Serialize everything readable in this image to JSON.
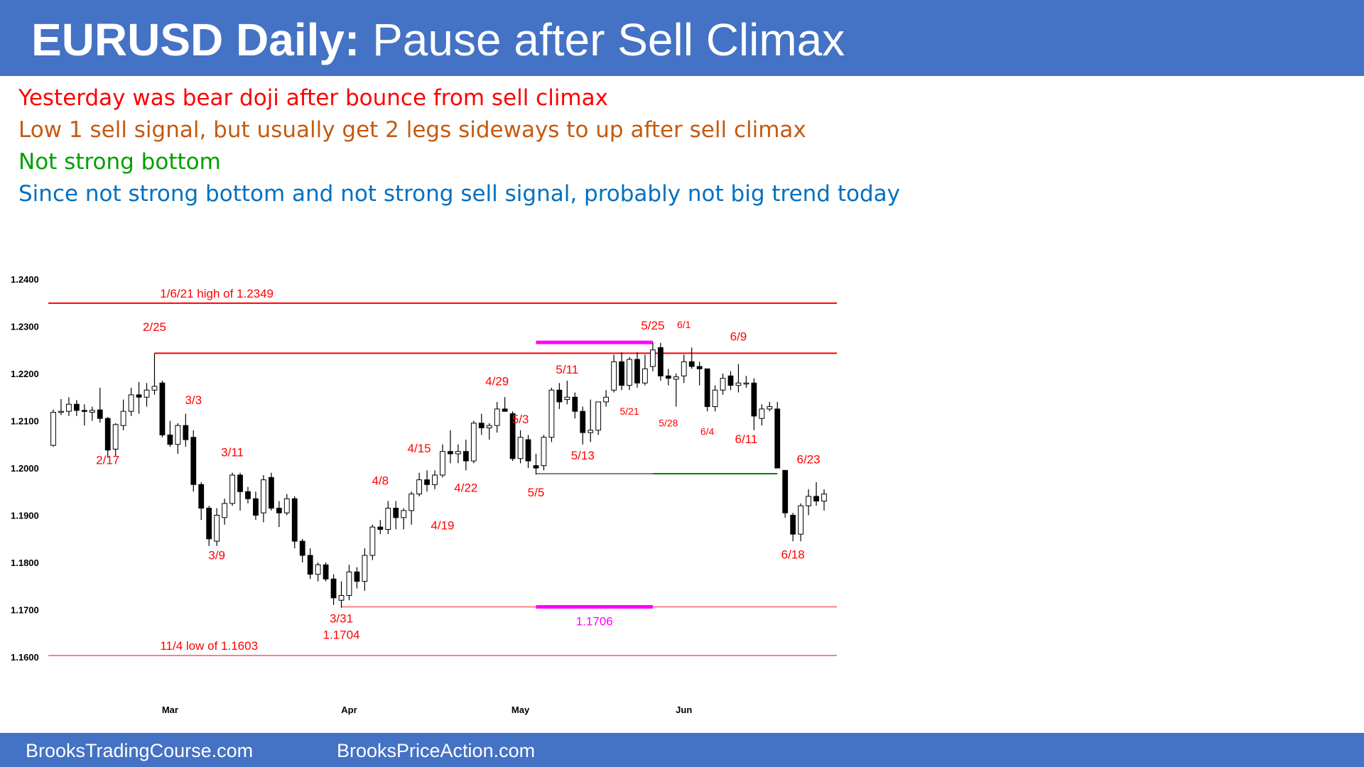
{
  "header": {
    "title_bold": "EURUSD Daily:",
    "title_rest": " Pause after Sell Climax",
    "bar_color": "#4472c4"
  },
  "notes": [
    {
      "text": "Yesterday was bear doji after bounce from sell climax",
      "color": "#ff0000"
    },
    {
      "text": "Low 1 sell signal, but usually get 2 legs sideways to up after sell climax",
      "color": "#c55a11"
    },
    {
      "text": "Not strong bottom",
      "color": "#00a000"
    },
    {
      "text": "Since not strong bottom and not strong sell signal, probably not big trend today",
      "color": "#0070c0"
    }
  ],
  "footer": {
    "left": "BrooksTradingCourse.com",
    "right": "BrooksPriceAction.com"
  },
  "chart_data": {
    "type": "candlestick",
    "title": "",
    "ylim": [
      1.16,
      1.24
    ],
    "y_ticks": [
      "1.2400",
      "1.2300",
      "1.2200",
      "1.2100",
      "1.2000",
      "1.1900",
      "1.1800",
      "1.1700",
      "1.1600"
    ],
    "x_ticks": [
      {
        "label": "Mar",
        "date": "2021-03-01"
      },
      {
        "label": "Apr",
        "date": "2021-04-01"
      },
      {
        "label": "May",
        "date": "2021-05-03"
      },
      {
        "label": "Jun",
        "date": "2021-06-01"
      }
    ],
    "grid": false,
    "candles": [
      {
        "date": "2021-02-08",
        "o": 1.2048,
        "h": 1.2124,
        "l": 1.2045,
        "c": 1.2118
      },
      {
        "date": "2021-02-09",
        "o": 1.2118,
        "h": 1.2146,
        "l": 1.2112,
        "c": 1.212
      },
      {
        "date": "2021-02-10",
        "o": 1.212,
        "h": 1.215,
        "l": 1.211,
        "c": 1.2135
      },
      {
        "date": "2021-02-11",
        "o": 1.2135,
        "h": 1.2144,
        "l": 1.211,
        "c": 1.2122
      },
      {
        "date": "2021-02-12",
        "o": 1.2122,
        "h": 1.2135,
        "l": 1.209,
        "c": 1.212
      },
      {
        "date": "2021-02-15",
        "o": 1.2118,
        "h": 1.213,
        "l": 1.21,
        "c": 1.2122
      },
      {
        "date": "2021-02-16",
        "o": 1.2123,
        "h": 1.217,
        "l": 1.2096,
        "c": 1.2105
      },
      {
        "date": "2021-02-17",
        "o": 1.2105,
        "h": 1.2108,
        "l": 1.2022,
        "c": 1.2038
      },
      {
        "date": "2021-02-18",
        "o": 1.204,
        "h": 1.2095,
        "l": 1.2025,
        "c": 1.2092
      },
      {
        "date": "2021-02-19",
        "o": 1.209,
        "h": 1.2145,
        "l": 1.208,
        "c": 1.212
      },
      {
        "date": "2021-02-22",
        "o": 1.212,
        "h": 1.217,
        "l": 1.211,
        "c": 1.2155
      },
      {
        "date": "2021-02-23",
        "o": 1.2155,
        "h": 1.2182,
        "l": 1.2115,
        "c": 1.215
      },
      {
        "date": "2021-02-24",
        "o": 1.215,
        "h": 1.218,
        "l": 1.213,
        "c": 1.2165
      },
      {
        "date": "2021-02-25",
        "o": 1.2165,
        "h": 1.2243,
        "l": 1.2155,
        "c": 1.2173
      },
      {
        "date": "2021-02-26",
        "o": 1.218,
        "h": 1.2185,
        "l": 1.2065,
        "c": 1.207
      },
      {
        "date": "2021-03-01",
        "o": 1.207,
        "h": 1.21,
        "l": 1.2045,
        "c": 1.205
      },
      {
        "date": "2021-03-02",
        "o": 1.205,
        "h": 1.2095,
        "l": 1.203,
        "c": 1.209
      },
      {
        "date": "2021-03-03",
        "o": 1.209,
        "h": 1.2115,
        "l": 1.2045,
        "c": 1.206
      },
      {
        "date": "2021-03-04",
        "o": 1.2065,
        "h": 1.208,
        "l": 1.195,
        "c": 1.1965
      },
      {
        "date": "2021-03-05",
        "o": 1.1965,
        "h": 1.197,
        "l": 1.189,
        "c": 1.1915
      },
      {
        "date": "2021-03-08",
        "o": 1.1915,
        "h": 1.192,
        "l": 1.1835,
        "c": 1.185
      },
      {
        "date": "2021-03-09",
        "o": 1.1845,
        "h": 1.1915,
        "l": 1.1835,
        "c": 1.19
      },
      {
        "date": "2021-03-10",
        "o": 1.1895,
        "h": 1.1935,
        "l": 1.188,
        "c": 1.1925
      },
      {
        "date": "2021-03-11",
        "o": 1.1925,
        "h": 1.199,
        "l": 1.192,
        "c": 1.1985
      },
      {
        "date": "2021-03-12",
        "o": 1.1985,
        "h": 1.199,
        "l": 1.191,
        "c": 1.195
      },
      {
        "date": "2021-03-15",
        "o": 1.195,
        "h": 1.196,
        "l": 1.1925,
        "c": 1.1935
      },
      {
        "date": "2021-03-16",
        "o": 1.1935,
        "h": 1.195,
        "l": 1.189,
        "c": 1.19
      },
      {
        "date": "2021-03-17",
        "o": 1.1905,
        "h": 1.1985,
        "l": 1.1885,
        "c": 1.1975
      },
      {
        "date": "2021-03-18",
        "o": 1.198,
        "h": 1.199,
        "l": 1.191,
        "c": 1.1915
      },
      {
        "date": "2021-03-19",
        "o": 1.1915,
        "h": 1.193,
        "l": 1.1875,
        "c": 1.1905
      },
      {
        "date": "2021-03-22",
        "o": 1.1905,
        "h": 1.1945,
        "l": 1.19,
        "c": 1.1935
      },
      {
        "date": "2021-03-23",
        "o": 1.1935,
        "h": 1.194,
        "l": 1.183,
        "c": 1.1845
      },
      {
        "date": "2021-03-24",
        "o": 1.1845,
        "h": 1.185,
        "l": 1.18,
        "c": 1.1815
      },
      {
        "date": "2021-03-25",
        "o": 1.1815,
        "h": 1.183,
        "l": 1.1765,
        "c": 1.1775
      },
      {
        "date": "2021-03-26",
        "o": 1.1775,
        "h": 1.18,
        "l": 1.176,
        "c": 1.1795
      },
      {
        "date": "2021-03-29",
        "o": 1.1795,
        "h": 1.18,
        "l": 1.176,
        "c": 1.1765
      },
      {
        "date": "2021-03-30",
        "o": 1.1765,
        "h": 1.1775,
        "l": 1.171,
        "c": 1.1725
      },
      {
        "date": "2021-03-31",
        "o": 1.172,
        "h": 1.176,
        "l": 1.1704,
        "c": 1.173
      },
      {
        "date": "2021-04-01",
        "o": 1.173,
        "h": 1.1795,
        "l": 1.172,
        "c": 1.178
      },
      {
        "date": "2021-04-02",
        "o": 1.178,
        "h": 1.179,
        "l": 1.1745,
        "c": 1.176
      },
      {
        "date": "2021-04-05",
        "o": 1.176,
        "h": 1.183,
        "l": 1.174,
        "c": 1.1815
      },
      {
        "date": "2021-04-06",
        "o": 1.1815,
        "h": 1.188,
        "l": 1.1805,
        "c": 1.1875
      },
      {
        "date": "2021-04-07",
        "o": 1.1875,
        "h": 1.189,
        "l": 1.186,
        "c": 1.187
      },
      {
        "date": "2021-04-08",
        "o": 1.187,
        "h": 1.193,
        "l": 1.186,
        "c": 1.1915
      },
      {
        "date": "2021-04-09",
        "o": 1.1915,
        "h": 1.193,
        "l": 1.187,
        "c": 1.1895
      },
      {
        "date": "2021-04-12",
        "o": 1.1895,
        "h": 1.1915,
        "l": 1.187,
        "c": 1.191
      },
      {
        "date": "2021-04-13",
        "o": 1.191,
        "h": 1.195,
        "l": 1.188,
        "c": 1.1945
      },
      {
        "date": "2021-04-14",
        "o": 1.1945,
        "h": 1.199,
        "l": 1.194,
        "c": 1.1975
      },
      {
        "date": "2021-04-15",
        "o": 1.1975,
        "h": 1.1995,
        "l": 1.195,
        "c": 1.1965
      },
      {
        "date": "2021-04-16",
        "o": 1.1965,
        "h": 1.1995,
        "l": 1.1955,
        "c": 1.1985
      },
      {
        "date": "2021-04-19",
        "o": 1.1985,
        "h": 1.205,
        "l": 1.198,
        "c": 1.2035
      },
      {
        "date": "2021-04-20",
        "o": 1.2035,
        "h": 1.208,
        "l": 1.201,
        "c": 1.203
      },
      {
        "date": "2021-04-21",
        "o": 1.203,
        "h": 1.205,
        "l": 1.201,
        "c": 1.2035
      },
      {
        "date": "2021-04-22",
        "o": 1.2035,
        "h": 1.206,
        "l": 1.1995,
        "c": 1.2015
      },
      {
        "date": "2021-04-23",
        "o": 1.2015,
        "h": 1.21,
        "l": 1.201,
        "c": 1.2095
      },
      {
        "date": "2021-04-26",
        "o": 1.2095,
        "h": 1.2115,
        "l": 1.207,
        "c": 1.2085
      },
      {
        "date": "2021-04-27",
        "o": 1.2085,
        "h": 1.2095,
        "l": 1.206,
        "c": 1.209
      },
      {
        "date": "2021-04-28",
        "o": 1.209,
        "h": 1.214,
        "l": 1.2075,
        "c": 1.2125
      },
      {
        "date": "2021-04-29",
        "o": 1.2125,
        "h": 1.215,
        "l": 1.212,
        "c": 1.212
      },
      {
        "date": "2021-04-30",
        "o": 1.2115,
        "h": 1.212,
        "l": 1.2015,
        "c": 1.202
      },
      {
        "date": "2021-05-03",
        "o": 1.202,
        "h": 1.208,
        "l": 1.201,
        "c": 1.2065
      },
      {
        "date": "2021-05-04",
        "o": 1.206,
        "h": 1.207,
        "l": 1.2,
        "c": 1.2015
      },
      {
        "date": "2021-05-05",
        "o": 1.2005,
        "h": 1.203,
        "l": 1.1986,
        "c": 1.2
      },
      {
        "date": "2021-05-06",
        "o": 1.2005,
        "h": 1.207,
        "l": 1.1995,
        "c": 1.2065
      },
      {
        "date": "2021-05-07",
        "o": 1.2065,
        "h": 1.217,
        "l": 1.2055,
        "c": 1.2165
      },
      {
        "date": "2021-05-10",
        "o": 1.2165,
        "h": 1.218,
        "l": 1.2125,
        "c": 1.214
      },
      {
        "date": "2021-05-11",
        "o": 1.2145,
        "h": 1.2185,
        "l": 1.2135,
        "c": 1.215
      },
      {
        "date": "2021-05-12",
        "o": 1.215,
        "h": 1.216,
        "l": 1.2105,
        "c": 1.212
      },
      {
        "date": "2021-05-13",
        "o": 1.212,
        "h": 1.213,
        "l": 1.205,
        "c": 1.2075
      },
      {
        "date": "2021-05-14",
        "o": 1.2075,
        "h": 1.2145,
        "l": 1.2055,
        "c": 1.208
      },
      {
        "date": "2021-05-17",
        "o": 1.208,
        "h": 1.214,
        "l": 1.207,
        "c": 1.214
      },
      {
        "date": "2021-05-18",
        "o": 1.214,
        "h": 1.2165,
        "l": 1.213,
        "c": 1.215
      },
      {
        "date": "2021-05-19",
        "o": 1.2165,
        "h": 1.224,
        "l": 1.216,
        "c": 1.2225
      },
      {
        "date": "2021-05-20",
        "o": 1.2225,
        "h": 1.2245,
        "l": 1.2165,
        "c": 1.2175
      },
      {
        "date": "2021-05-21",
        "o": 1.2175,
        "h": 1.2235,
        "l": 1.2165,
        "c": 1.223
      },
      {
        "date": "2021-05-24",
        "o": 1.223,
        "h": 1.2245,
        "l": 1.217,
        "c": 1.218
      },
      {
        "date": "2021-05-25",
        "o": 1.218,
        "h": 1.224,
        "l": 1.2175,
        "c": 1.221
      },
      {
        "date": "2021-05-26",
        "o": 1.2215,
        "h": 1.2266,
        "l": 1.2205,
        "c": 1.225
      },
      {
        "date": "2021-05-27",
        "o": 1.2255,
        "h": 1.2265,
        "l": 1.2185,
        "c": 1.2195
      },
      {
        "date": "2021-05-28",
        "o": 1.2195,
        "h": 1.221,
        "l": 1.2175,
        "c": 1.219
      },
      {
        "date": "2021-05-31",
        "o": 1.2188,
        "h": 1.22,
        "l": 1.213,
        "c": 1.2193
      },
      {
        "date": "2021-06-01",
        "o": 1.2195,
        "h": 1.224,
        "l": 1.218,
        "c": 1.2225
      },
      {
        "date": "2021-06-02",
        "o": 1.2225,
        "h": 1.2255,
        "l": 1.221,
        "c": 1.2215
      },
      {
        "date": "2021-06-03",
        "o": 1.2215,
        "h": 1.2225,
        "l": 1.2175,
        "c": 1.221
      },
      {
        "date": "2021-06-04",
        "o": 1.221,
        "h": 1.221,
        "l": 1.212,
        "c": 1.213
      },
      {
        "date": "2021-06-07",
        "o": 1.213,
        "h": 1.2175,
        "l": 1.212,
        "c": 1.2165
      },
      {
        "date": "2021-06-08",
        "o": 1.2165,
        "h": 1.22,
        "l": 1.2155,
        "c": 1.219
      },
      {
        "date": "2021-06-09",
        "o": 1.2195,
        "h": 1.2205,
        "l": 1.2165,
        "c": 1.2175
      },
      {
        "date": "2021-06-10",
        "o": 1.2175,
        "h": 1.222,
        "l": 1.216,
        "c": 1.218
      },
      {
        "date": "2021-06-11",
        "o": 1.218,
        "h": 1.2195,
        "l": 1.217,
        "c": 1.218
      },
      {
        "date": "2021-06-14",
        "o": 1.218,
        "h": 1.219,
        "l": 1.208,
        "c": 1.211
      },
      {
        "date": "2021-06-15",
        "o": 1.2105,
        "h": 1.2135,
        "l": 1.209,
        "c": 1.2125
      },
      {
        "date": "2021-06-16",
        "o": 1.2125,
        "h": 1.214,
        "l": 1.212,
        "c": 1.213
      },
      {
        "date": "2021-06-17",
        "o": 1.2125,
        "h": 1.214,
        "l": 1.2,
        "c": 1.2
      },
      {
        "date": "2021-06-18",
        "o": 1.1995,
        "h": 1.1995,
        "l": 1.1895,
        "c": 1.1905
      },
      {
        "date": "2021-06-21",
        "o": 1.19,
        "h": 1.1905,
        "l": 1.1845,
        "c": 1.186
      },
      {
        "date": "2021-06-22",
        "o": 1.186,
        "h": 1.1925,
        "l": 1.1845,
        "c": 1.192
      },
      {
        "date": "2021-06-23",
        "o": 1.192,
        "h": 1.1955,
        "l": 1.19,
        "c": 1.194
      },
      {
        "date": "2021-06-24",
        "o": 1.194,
        "h": 1.197,
        "l": 1.192,
        "c": 1.193
      },
      {
        "date": "2021-06-25",
        "o": 1.193,
        "h": 1.1955,
        "l": 1.191,
        "c": 1.1945
      }
    ],
    "hlines": [
      {
        "label": "1/6/21 high of 1.2349",
        "y": 1.2349,
        "x_start": "2021-02-08",
        "x_end": "2021-06-25",
        "color": "#ff0000",
        "label_date": "2021-03-09"
      },
      {
        "label": "",
        "y": 1.2243,
        "x_start": "2021-02-25",
        "x_end": "2021-06-25",
        "color": "#ff0000",
        "label_date": ""
      },
      {
        "label": "",
        "y": 1.1988,
        "x_start": "2021-05-26",
        "x_end": "2021-06-17",
        "color": "#008000",
        "label_date": ""
      },
      {
        "label": "",
        "y": 1.1988,
        "x_start": "2021-05-05",
        "x_end": "2021-05-26",
        "color": "#808080",
        "label_date": ""
      },
      {
        "label": "",
        "y": 1.1706,
        "x_start": "2021-03-31",
        "x_end": "2021-06-25",
        "color": "#ff8080",
        "label_date": ""
      },
      {
        "label": "11/4 low of 1.1603",
        "y": 1.1603,
        "x_start": "2021-02-08",
        "x_end": "2021-06-25",
        "color": "#ff8080",
        "label_date": "2021-03-08"
      }
    ],
    "magenta_marks": [
      {
        "y": 1.2266,
        "x_start": "2021-05-05",
        "x_end": "2021-05-26"
      },
      {
        "y": 1.1706,
        "x_start": "2021-05-05",
        "x_end": "2021-05-26",
        "label": "1.1706"
      }
    ],
    "annotations": [
      {
        "text": "2/17",
        "date": "2021-02-17",
        "y": 1.2008,
        "color": "#ff0000",
        "size": 17
      },
      {
        "text": "2/25",
        "date": "2021-02-25",
        "y": 1.229,
        "color": "#ff0000",
        "size": 17
      },
      {
        "text": "3/3",
        "date": "2021-03-04",
        "y": 1.2135,
        "color": "#ff0000",
        "size": 17
      },
      {
        "text": "3/11",
        "date": "2021-03-11",
        "y": 1.2025,
        "color": "#ff0000",
        "size": 17
      },
      {
        "text": "3/9",
        "date": "2021-03-09",
        "y": 1.1807,
        "color": "#ff0000",
        "size": 17
      },
      {
        "text": "3/31",
        "date": "2021-03-31",
        "y": 1.1673,
        "color": "#ff0000",
        "size": 17
      },
      {
        "text": "1.1704",
        "date": "2021-03-31",
        "y": 1.1638,
        "color": "#ff0000",
        "size": 17
      },
      {
        "text": "4/8",
        "date": "2021-04-07",
        "y": 1.1965,
        "color": "#ff0000",
        "size": 17
      },
      {
        "text": "4/15",
        "date": "2021-04-14",
        "y": 1.2033,
        "color": "#ff0000",
        "size": 17
      },
      {
        "text": "4/19",
        "date": "2021-04-19",
        "y": 1.187,
        "color": "#ff0000",
        "size": 17
      },
      {
        "text": "4/22",
        "date": "2021-04-22",
        "y": 1.195,
        "color": "#ff0000",
        "size": 17
      },
      {
        "text": "4/29",
        "date": "2021-04-28",
        "y": 1.2175,
        "color": "#ff0000",
        "size": 17
      },
      {
        "text": "5/3",
        "date": "2021-05-03",
        "y": 1.2095,
        "color": "#ff0000",
        "size": 17
      },
      {
        "text": "5/5",
        "date": "2021-05-05",
        "y": 1.194,
        "color": "#ff0000",
        "size": 17
      },
      {
        "text": "5/11",
        "date": "2021-05-11",
        "y": 1.22,
        "color": "#ff0000",
        "size": 17
      },
      {
        "text": "5/13",
        "date": "2021-05-13",
        "y": 1.2018,
        "color": "#ff0000",
        "size": 17
      },
      {
        "text": "5/21",
        "date": "2021-05-21",
        "y": 1.2113,
        "color": "#ff0000",
        "size": 14
      },
      {
        "text": "5/25",
        "date": "2021-05-26",
        "y": 1.2293,
        "color": "#ff0000",
        "size": 17
      },
      {
        "text": "6/1",
        "date": "2021-06-01",
        "y": 1.2296,
        "color": "#ff0000",
        "size": 14
      },
      {
        "text": "5/28",
        "date": "2021-05-28",
        "y": 1.2088,
        "color": "#ff0000",
        "size": 14
      },
      {
        "text": "6/4",
        "date": "2021-06-04",
        "y": 1.207,
        "color": "#ff0000",
        "size": 14
      },
      {
        "text": "6/9",
        "date": "2021-06-10",
        "y": 1.227,
        "color": "#ff0000",
        "size": 17
      },
      {
        "text": "6/11",
        "date": "2021-06-11",
        "y": 1.2053,
        "color": "#ff0000",
        "size": 17
      },
      {
        "text": "6/23",
        "date": "2021-06-23",
        "y": 1.201,
        "color": "#ff0000",
        "size": 17
      },
      {
        "text": "6/18",
        "date": "2021-06-21",
        "y": 1.1808,
        "color": "#ff0000",
        "size": 17
      }
    ]
  }
}
